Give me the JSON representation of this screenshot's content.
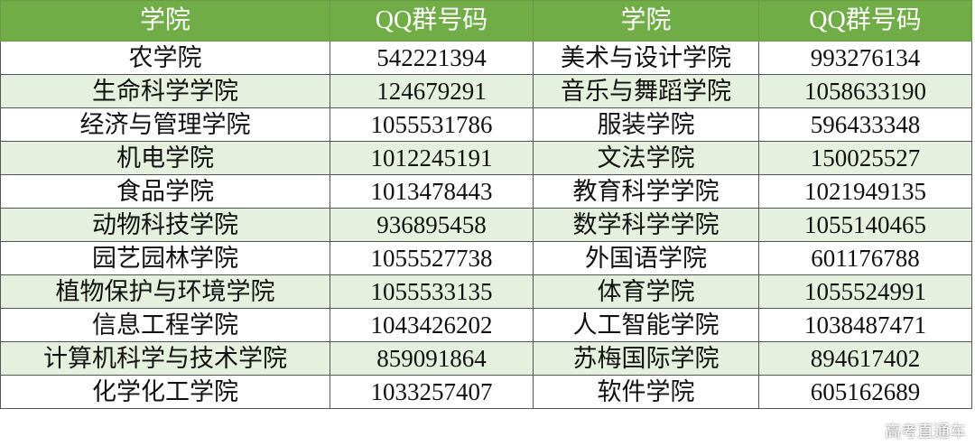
{
  "header": [
    "学院",
    "QQ群号码",
    "学院",
    "QQ群号码"
  ],
  "rows": [
    [
      "农学院",
      "542221394",
      "美术与设计学院",
      "993276134"
    ],
    [
      "生命科学学院",
      "124679291",
      "音乐与舞蹈学院",
      "1058633190"
    ],
    [
      "经济与管理学院",
      "1055531786",
      "服装学院",
      "596433348"
    ],
    [
      "机电学院",
      "1012245191",
      "文法学院",
      "150025527"
    ],
    [
      "食品学院",
      "1013478443",
      "教育科学学院",
      "1021949135"
    ],
    [
      "动物科技学院",
      "936895458",
      "数学科学学院",
      "1055140465"
    ],
    [
      "园艺园林学院",
      "1055527738",
      "外国语学院",
      "601176788"
    ],
    [
      "植物保护与环境学院",
      "1055533135",
      "体育学院",
      "1055524991"
    ],
    [
      "信息工程学院",
      "1043426202",
      "人工智能学院",
      "1038487471"
    ],
    [
      "计算机科学与技术学院",
      "859091864",
      "苏梅国际学院",
      "894617402"
    ],
    [
      "化学化工学院",
      "1033257407",
      "软件学院",
      "605162689"
    ]
  ],
  "watermark": "高考直通车",
  "colors": {
    "header": "#70ad47",
    "alt_row": "#e6f0de"
  }
}
